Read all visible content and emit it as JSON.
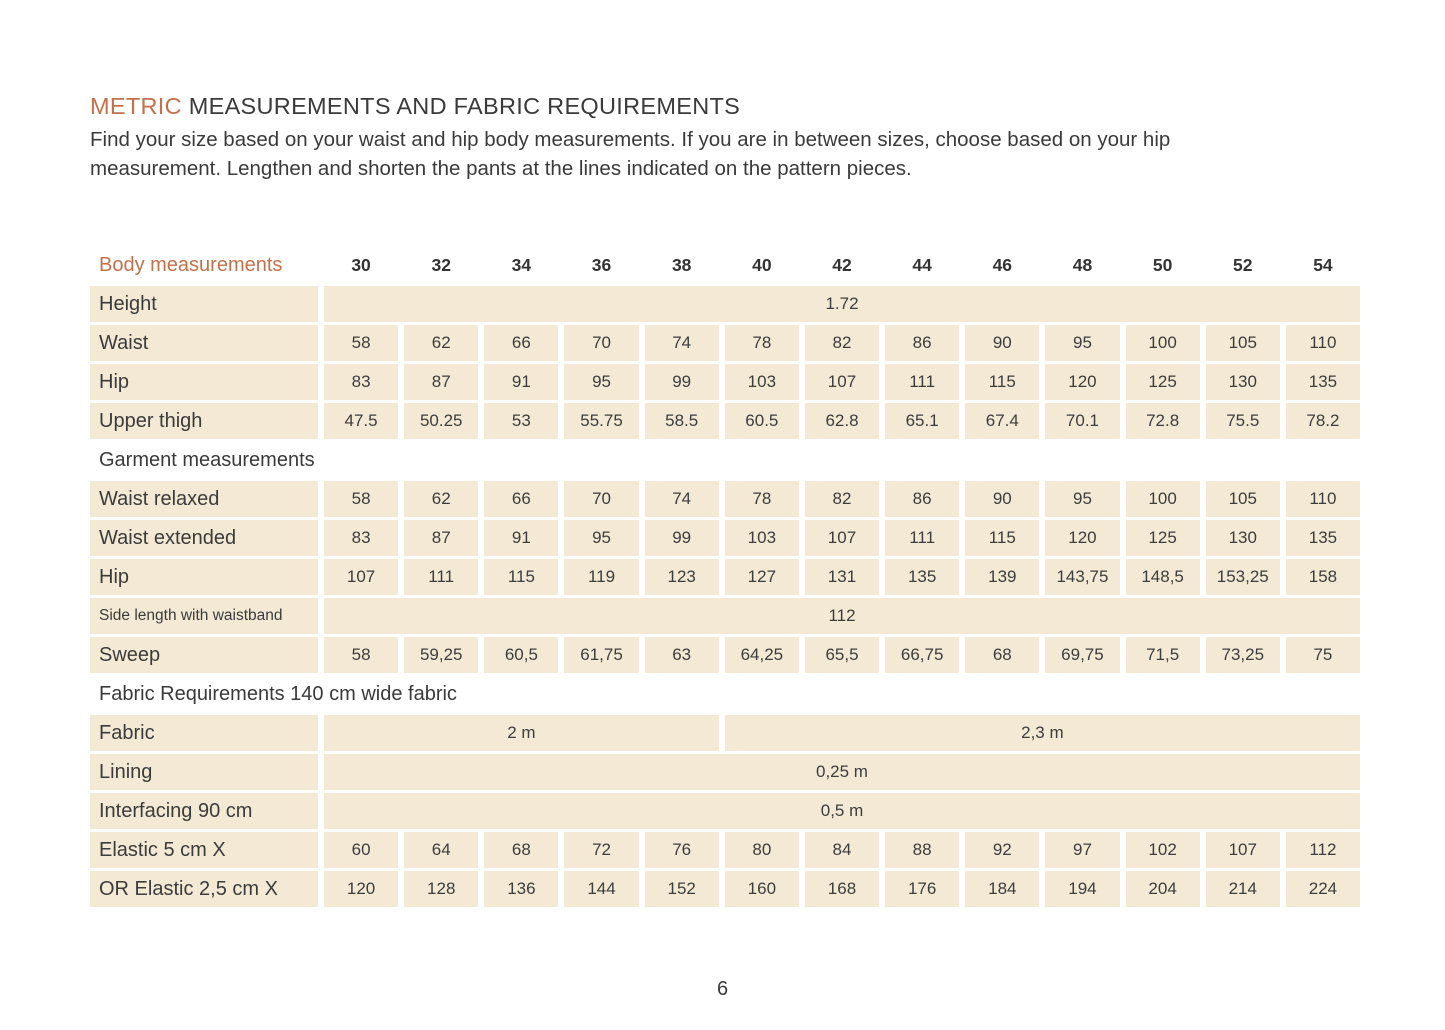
{
  "header": {
    "title_accent": "METRIC",
    "title_rest": "MEASUREMENTS AND FABRIC REQUIREMENTS",
    "intro_line1": "Find your size based on your waist and hip body measurements. If you are in between sizes, choose based on your hip",
    "intro_line2": "measurement. Lengthen and shorten the pants at the lines indicated on the pattern pieces."
  },
  "table": {
    "corner_label": "Body measurements",
    "sizes": [
      "30",
      "32",
      "34",
      "36",
      "38",
      "40",
      "42",
      "44",
      "46",
      "48",
      "50",
      "52",
      "54"
    ],
    "rows": [
      {
        "label": "Height",
        "cells": [
          {
            "span": 13,
            "value": "1.72"
          }
        ]
      },
      {
        "label": "Waist",
        "values": [
          "58",
          "62",
          "66",
          "70",
          "74",
          "78",
          "82",
          "86",
          "90",
          "95",
          "100",
          "105",
          "110"
        ]
      },
      {
        "label": "Hip",
        "values": [
          "83",
          "87",
          "91",
          "95",
          "99",
          "103",
          "107",
          "111",
          "115",
          "120",
          "125",
          "130",
          "135"
        ]
      },
      {
        "label": "Upper thigh",
        "values": [
          "47.5",
          "50.25",
          "53",
          "55.75",
          "58.5",
          "60.5",
          "62.8",
          "65.1",
          "67.4",
          "70.1",
          "72.8",
          "75.5",
          "78.2"
        ]
      },
      {
        "section": "Garment measurements"
      },
      {
        "label": "Waist relaxed",
        "values": [
          "58",
          "62",
          "66",
          "70",
          "74",
          "78",
          "82",
          "86",
          "90",
          "95",
          "100",
          "105",
          "110"
        ]
      },
      {
        "label": "Waist extended",
        "values": [
          "83",
          "87",
          "91",
          "95",
          "99",
          "103",
          "107",
          "111",
          "115",
          "120",
          "125",
          "130",
          "135"
        ]
      },
      {
        "label": "Hip",
        "values": [
          "107",
          "111",
          "115",
          "119",
          "123",
          "127",
          "131",
          "135",
          "139",
          "143,75",
          "148,5",
          "153,25",
          "158"
        ]
      },
      {
        "label": "Side length with waistband",
        "cells": [
          {
            "span": 13,
            "value": "112"
          }
        ]
      },
      {
        "label": "Sweep",
        "values": [
          "58",
          "59,25",
          "60,5",
          "61,75",
          "63",
          "64,25",
          "65,5",
          "66,75",
          "68",
          "69,75",
          "71,5",
          "73,25",
          "75"
        ]
      },
      {
        "section": "Fabric Requirements 140 cm wide fabric"
      },
      {
        "label": "Fabric",
        "cells": [
          {
            "span": 5,
            "value": "2 m"
          },
          {
            "span": 8,
            "value": "2,3 m"
          }
        ]
      },
      {
        "label": "Lining",
        "cells": [
          {
            "span": 13,
            "value": "0,25 m"
          }
        ]
      },
      {
        "label": "Interfacing 90 cm",
        "cells": [
          {
            "span": 13,
            "value": "0,5 m"
          }
        ]
      },
      {
        "label": "Elastic 5 cm X",
        "values": [
          "60",
          "64",
          "68",
          "72",
          "76",
          "80",
          "84",
          "88",
          "92",
          "97",
          "102",
          "107",
          "112"
        ]
      },
      {
        "label": "OR Elastic 2,5 cm X",
        "values": [
          "120",
          "128",
          "136",
          "144",
          "152",
          "160",
          "168",
          "176",
          "184",
          "194",
          "204",
          "214",
          "224"
        ]
      }
    ]
  },
  "footer": {
    "page_number": "6"
  },
  "colors": {
    "accent_orange": "#c2714a",
    "cell_beige": "#f3e9d5",
    "text_dark": "#3a3a3a"
  }
}
